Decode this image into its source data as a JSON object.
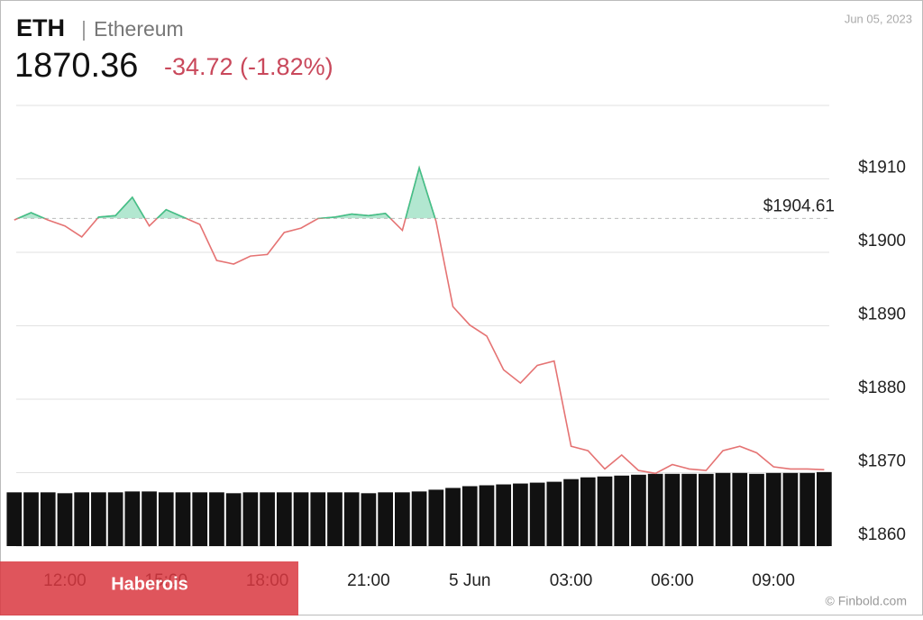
{
  "chart_data": {
    "type": "line",
    "title": "ETH",
    "subtitle": "Ethereum",
    "price": "1870.36",
    "change": "-34.72 (-1.82%)",
    "date": "Jun 05, 2023",
    "watermark": "Haberois",
    "source": "© Finbold.com",
    "categories": [
      null,
      null,
      null,
      "12:00",
      null,
      null,
      null,
      null,
      null,
      "15:00",
      null,
      null,
      null,
      null,
      null,
      "18:00",
      null,
      null,
      null,
      null,
      null,
      "21:00",
      null,
      null,
      null,
      null,
      null,
      "5 Jun",
      null,
      null,
      null,
      null,
      null,
      "03:00",
      null,
      null,
      null,
      null,
      null,
      "06:00",
      null,
      null,
      null,
      null,
      null,
      "09:00",
      null,
      null,
      null
    ],
    "series": [
      {
        "color": "#e57373",
        "up_color": "#3ec48a",
        "values": [
          1904.4,
          1905.4,
          1904.4,
          1903.6,
          1902.1,
          1904.8,
          1905.0,
          1907.5,
          1903.6,
          1905.8,
          1904.8,
          1903.8,
          1898.9,
          1898.4,
          1899.5,
          1899.7,
          1902.7,
          1903.3,
          1904.6,
          1904.8,
          1905.2,
          1905.0,
          1905.3,
          1903.0,
          1911.5,
          1904.2,
          1892.6,
          1890.1,
          1888.6,
          1884.0,
          1882.2,
          1884.6,
          1885.2,
          1873.6,
          1873.0,
          1870.5,
          1872.4,
          1870.3,
          1869.9,
          1871.1,
          1870.5,
          1870.3,
          1873.0,
          1873.6,
          1872.7,
          1870.8,
          1870.5,
          1870.5,
          1870.4
        ]
      },
      {
        "color": "#111111",
        "axis": "y2",
        "values": [
          61,
          61,
          61,
          60,
          61,
          61,
          61,
          62,
          62,
          61,
          61,
          61,
          61,
          60,
          61,
          61,
          61,
          61,
          61,
          61,
          61,
          60,
          61,
          61,
          62,
          64,
          66,
          68,
          69,
          70,
          71,
          72,
          73,
          76,
          78,
          79,
          80,
          81,
          82,
          82,
          82,
          82,
          83,
          83,
          82,
          83,
          83,
          83,
          84
        ]
      }
    ],
    "reference": {
      "value": 1904.61,
      "label": "$1904.61"
    },
    "ylim": [
      1860,
      1920
    ],
    "yticks": [
      {
        "value": 1860,
        "label": "$1860"
      },
      {
        "value": 1870,
        "label": "$1870"
      },
      {
        "value": 1880,
        "label": "$1880"
      },
      {
        "value": 1890,
        "label": "$1890"
      },
      {
        "value": 1900,
        "label": "$1900"
      },
      {
        "value": 1910,
        "label": "$1910"
      }
    ],
    "y2lim": [
      0,
      500
    ],
    "grid": true
  }
}
